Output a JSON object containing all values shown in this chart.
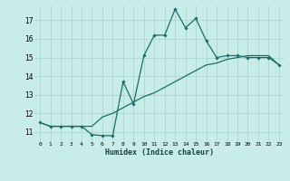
{
  "xlabel": "Humidex (Indice chaleur)",
  "ylabel": "",
  "background_color": "#c8ece8",
  "grid_color": "#b0d8d4",
  "line_color": "#1a6e68",
  "x_hours": [
    0,
    1,
    2,
    3,
    4,
    5,
    6,
    7,
    8,
    9,
    10,
    11,
    12,
    13,
    14,
    15,
    16,
    17,
    18,
    19,
    20,
    21,
    22,
    23
  ],
  "line1_y": [
    11.5,
    11.3,
    11.3,
    11.3,
    11.3,
    10.85,
    10.8,
    10.8,
    13.7,
    12.5,
    15.1,
    16.2,
    16.2,
    17.6,
    16.6,
    17.1,
    15.9,
    15.0,
    15.1,
    15.1,
    15.0,
    15.0,
    15.0,
    14.6
  ],
  "line2_y": [
    11.5,
    11.3,
    11.3,
    11.3,
    11.3,
    11.3,
    11.8,
    12.0,
    12.3,
    12.6,
    12.9,
    13.1,
    13.4,
    13.7,
    14.0,
    14.3,
    14.6,
    14.7,
    14.9,
    15.0,
    15.1,
    15.1,
    15.1,
    14.6
  ],
  "ylim": [
    10.5,
    17.8
  ],
  "yticks": [
    11,
    12,
    13,
    14,
    15,
    16,
    17
  ],
  "xlim": [
    -0.5,
    23.5
  ],
  "xticks": [
    0,
    1,
    2,
    3,
    4,
    5,
    6,
    7,
    8,
    9,
    10,
    11,
    12,
    13,
    14,
    15,
    16,
    17,
    18,
    19,
    20,
    21,
    22,
    23
  ]
}
